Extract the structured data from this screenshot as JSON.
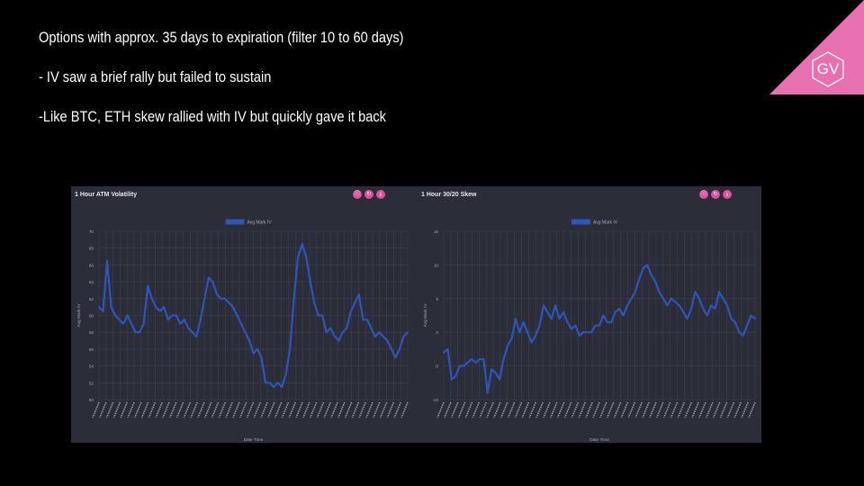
{
  "slide": {
    "bullets": [
      "Options with approx. 35 days to expiration (filter 10 to 60 days)",
      "- IV saw a brief rally but failed to sustain",
      "-Like BTC, ETH skew rallied with IV but quickly gave it back"
    ],
    "logo_text": "GV",
    "colors": {
      "background": "#000000",
      "panel": "#2b2d39",
      "series": "#2e55b8",
      "button": "#e0509a",
      "logo": "#e870b0"
    }
  },
  "chart_data": [
    {
      "type": "line",
      "title": "1 Hour ATM Volatility",
      "xlabel": "Date Time",
      "ylabel": "Avg Mark IV",
      "legend": "top-center",
      "grid": true,
      "ylim": [
        50,
        70
      ],
      "yticks": [
        50,
        52,
        54,
        56,
        58,
        60,
        62,
        64,
        66,
        68,
        70
      ],
      "series": [
        {
          "name": "Avg Mark IV",
          "values": [
            61,
            60.5,
            66.5,
            61,
            60,
            59.5,
            59,
            60,
            59,
            58,
            58,
            59,
            63.5,
            62,
            61,
            60.5,
            61,
            59.5,
            60,
            60,
            59,
            59.5,
            58.5,
            58,
            57.5,
            59.5,
            62,
            64.5,
            64,
            62.5,
            62,
            62,
            61.5,
            61,
            60,
            59,
            58,
            57,
            55.5,
            56,
            55,
            52,
            52,
            51.5,
            52,
            51.5,
            53,
            56,
            62,
            67,
            68.5,
            67,
            64,
            61.5,
            60,
            60,
            58,
            58.5,
            57.5,
            57,
            58,
            58.5,
            60.5,
            61.5,
            62.5,
            59.5,
            59.5,
            58.5,
            57.5,
            58,
            57.5,
            57,
            56,
            55,
            56,
            57.5,
            58
          ]
        }
      ]
    },
    {
      "type": "line",
      "title": "1 Hour 30/20 Skew",
      "xlabel": "Date Time",
      "ylabel": "Avg Mark IV",
      "legend": "top-center",
      "grid": true,
      "ylim": [
        -10,
        15
      ],
      "yticks": [
        -10,
        -5,
        0,
        5,
        10,
        15
      ],
      "series": [
        {
          "name": "Avg Mark IV",
          "values": [
            -3,
            -2.5,
            -7,
            -6.5,
            -5,
            -5,
            -4.5,
            -4,
            -4.5,
            -4,
            -4,
            -9,
            -5.5,
            -6,
            -7,
            -4,
            -2,
            -1,
            2,
            0,
            1.5,
            0,
            -1.5,
            -0.5,
            1,
            4,
            3,
            2,
            4,
            2,
            3,
            1.5,
            0.5,
            1,
            -0.5,
            0,
            0,
            0,
            1,
            1,
            2.5,
            1.5,
            1.5,
            3,
            3.5,
            2.5,
            4,
            5,
            6,
            8,
            9.5,
            10,
            8.5,
            7.5,
            6,
            5,
            4,
            5,
            4.5,
            4,
            3,
            2,
            3.5,
            6,
            5,
            3.5,
            2.5,
            4,
            3.5,
            6,
            5,
            4,
            2,
            1.5,
            0,
            -0.5,
            1,
            2.5,
            2
          ]
        }
      ]
    }
  ]
}
